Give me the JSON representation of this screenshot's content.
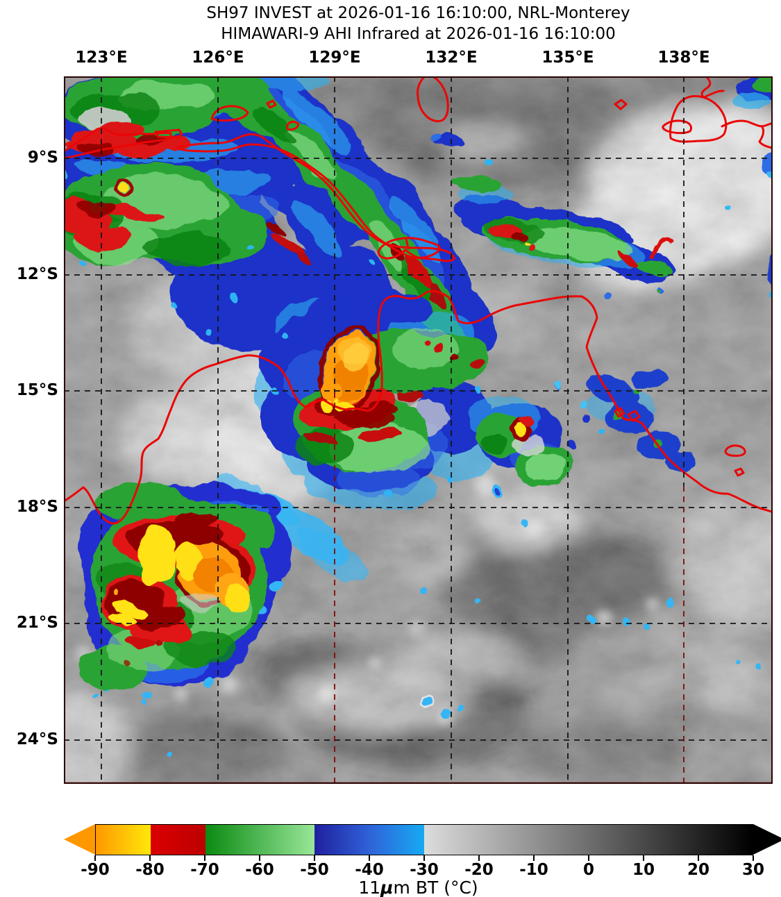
{
  "title": {
    "line1": "SH97 INVEST at 2026-01-16 16:10:00, NRL-Monterey",
    "line2": "HIMAWARI-9 AHI Infrared at 2026-01-16 16:10:00"
  },
  "axes": {
    "lon_labels": [
      "123°E",
      "126°E",
      "129°E",
      "132°E",
      "135°E",
      "138°E"
    ],
    "lat_labels": [
      "9°S",
      "12°S",
      "15°S",
      "18°S",
      "21°S",
      "24°S"
    ]
  },
  "colorbar": {
    "ticks": [
      "-90",
      "-80",
      "-70",
      "-60",
      "-50",
      "-40",
      "-30",
      "-20",
      "-10",
      "0",
      "10",
      "20",
      "30"
    ],
    "domain": [
      -90,
      30
    ],
    "label_prefix": "11",
    "label_mu": "μ",
    "label_suffix": "m BT (°C)",
    "extend_min_color": "#ff9800",
    "extend_max_color": "#000000",
    "segments": [
      {
        "from": -90,
        "to": -80,
        "start": "#ff9800",
        "end": "#ffe80a"
      },
      {
        "from": -80,
        "to": -70,
        "start": "#db0000",
        "end": "#bd0000"
      },
      {
        "from": -70,
        "to": -50,
        "start": "#0b8a12",
        "end": "#98e698"
      },
      {
        "from": -50,
        "to": -40,
        "start": "#20209f",
        "end": "#2f62d8"
      },
      {
        "from": -40,
        "to": -30,
        "start": "#2f62d8",
        "end": "#16aaf2"
      },
      {
        "from": -30,
        "to": 30,
        "start": "#dcdcdc",
        "end": "#000000"
      }
    ]
  },
  "map": {
    "coastline_color": "#ea0606",
    "gridline_color": "#151515",
    "gridline_alt_color": "#7c0a0a",
    "enhancement_colors": {
      "yellow": "#ffe316",
      "orange": "#ff9e10",
      "red": "#dc1212",
      "dark_red": "#8e0000",
      "green": "#2aa336",
      "light_green": "#8ae08a",
      "dark_green": "#0d8414",
      "blue": "#1e32c8",
      "cyan": "#35b5f5"
    }
  }
}
